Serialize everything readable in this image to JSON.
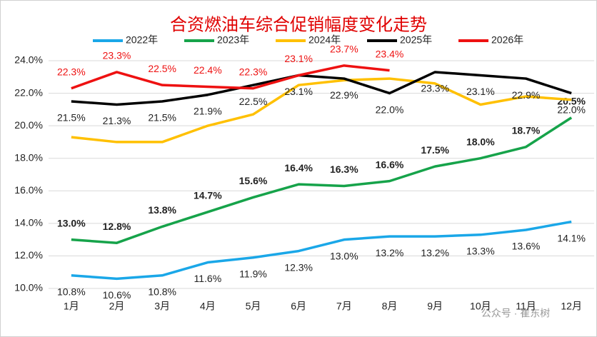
{
  "chart_data": {
    "type": "line",
    "title": "合资燃油车综合促销幅度变化走势",
    "watermark": "公众号 · 崔东树",
    "categories": [
      "1月",
      "2月",
      "3月",
      "4月",
      "5月",
      "6月",
      "7月",
      "8月",
      "9月",
      "10月",
      "11月",
      "12月"
    ],
    "ylim": [
      10,
      24
    ],
    "yticks": [
      {
        "value": 10,
        "label": "10.0%"
      },
      {
        "value": 12,
        "label": "12.0%"
      },
      {
        "value": 14,
        "label": "14.0%"
      },
      {
        "value": 16,
        "label": "16.0%"
      },
      {
        "value": 18,
        "label": "18.0%"
      },
      {
        "value": 20,
        "label": "20.0%"
      },
      {
        "value": 22,
        "label": "22.0%"
      },
      {
        "value": 24,
        "label": "24.0%"
      }
    ],
    "grid": true,
    "legend": "top",
    "series": [
      {
        "name": "2022年",
        "color": "#1aa7e8",
        "label_position": "below",
        "label_bold": false,
        "values": [
          10.8,
          10.6,
          10.8,
          11.6,
          11.9,
          12.3,
          13.0,
          13.2,
          13.2,
          13.3,
          13.6,
          14.1
        ],
        "value_labels": [
          "10.8%",
          "10.6%",
          "10.8%",
          "11.6%",
          "11.9%",
          "12.3%",
          "13.0%",
          "13.2%",
          "13.2%",
          "13.3%",
          "13.6%",
          "14.1%"
        ]
      },
      {
        "name": "2023年",
        "color": "#16a34a",
        "label_position": "above",
        "label_bold": true,
        "values": [
          13.0,
          12.8,
          13.8,
          14.7,
          15.6,
          16.4,
          16.3,
          16.6,
          17.5,
          18.0,
          18.7,
          20.5
        ],
        "value_labels": [
          "13.0%",
          "12.8%",
          "13.8%",
          "14.7%",
          "15.6%",
          "16.4%",
          "16.3%",
          "16.6%",
          "17.5%",
          "18.0%",
          "18.7%",
          "20.5%"
        ]
      },
      {
        "name": "2024年",
        "color": "#ffc000",
        "values": [
          19.3,
          19.0,
          19.0,
          20.0,
          20.7,
          22.5,
          22.8,
          22.9,
          22.6,
          21.3,
          21.8,
          21.6
        ]
      },
      {
        "name": "2025年",
        "color": "#000000",
        "label_position": "below",
        "label_bold": false,
        "values": [
          21.5,
          21.3,
          21.5,
          21.9,
          22.5,
          23.1,
          22.9,
          22.0,
          23.3,
          23.1,
          22.9,
          22.0
        ],
        "value_labels": [
          "21.5%",
          "21.3%",
          "21.5%",
          "21.9%",
          "22.5%",
          "23.1%",
          "22.9%",
          "22.0%",
          "23.3%",
          "23.1%",
          "22.9%",
          "22.0%"
        ]
      },
      {
        "name": "2026年",
        "color": "#ee1111",
        "label_position": "above",
        "label_bold": false,
        "values": [
          22.3,
          23.3,
          22.5,
          22.4,
          22.3,
          23.1,
          23.7,
          23.4,
          null,
          null,
          null,
          null
        ],
        "value_labels": [
          "22.3%",
          "23.3%",
          "22.5%",
          "22.4%",
          "22.3%",
          "23.1%",
          "23.7%",
          "23.4%",
          null,
          null,
          null,
          null
        ]
      }
    ]
  }
}
